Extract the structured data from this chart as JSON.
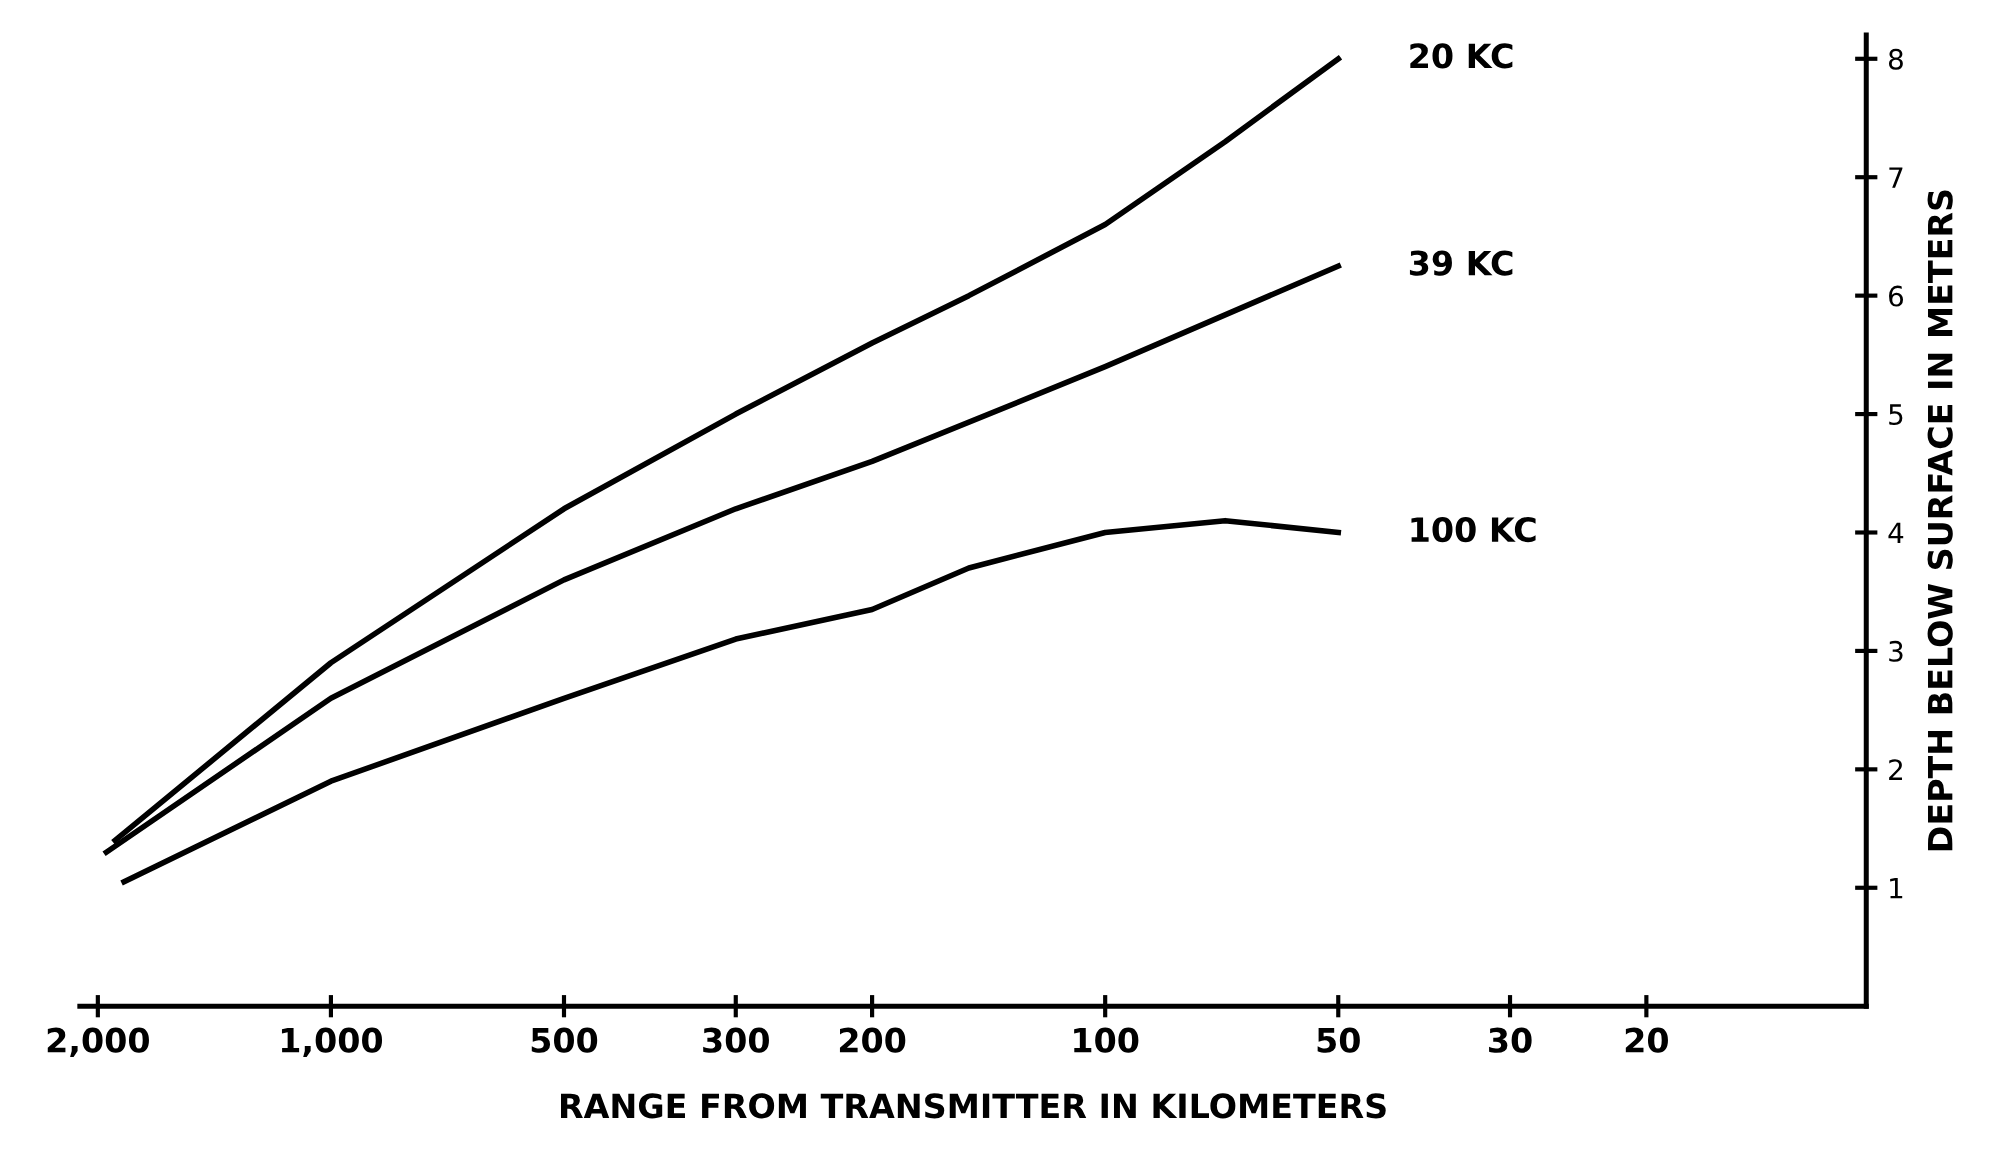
{
  "chart_data": {
    "type": "line",
    "xlabel": "RANGE FROM TRANSMITTER IN KILOMETERS",
    "ylabel": "DEPTH BELOW SURFACE IN METERS",
    "log": "x",
    "xlim": [
      2110,
      10.4
    ],
    "ylim": [
      0,
      8.2
    ],
    "xticks": [
      {
        "value": 2000,
        "label": "2,000"
      },
      {
        "value": 1000,
        "label": "1,000"
      },
      500,
      300,
      200,
      100,
      50,
      30,
      20
    ],
    "yticks": [
      1,
      2,
      3,
      4,
      5,
      6,
      7,
      8
    ],
    "grid": false,
    "legend": false,
    "marker": "none",
    "line_style": "solid",
    "series": [
      {
        "name": "20 KC",
        "color": "#000000",
        "x": [
          1900,
          1000,
          500,
          300,
          200,
          150,
          100,
          70,
          50
        ],
        "values": [
          1.4,
          2.9,
          4.2,
          5.0,
          5.6,
          6.0,
          6.6,
          7.3,
          8.0
        ]
      },
      {
        "name": "39 KC",
        "color": "#000000",
        "x": [
          1950,
          1000,
          500,
          300,
          200,
          100,
          50
        ],
        "values": [
          1.3,
          2.6,
          3.6,
          4.2,
          4.6,
          5.4,
          6.25
        ]
      },
      {
        "name": "100 KC",
        "color": "#000000",
        "x": [
          1850,
          1000,
          500,
          300,
          200,
          150,
          100,
          70,
          50
        ],
        "values": [
          1.05,
          1.9,
          2.6,
          3.1,
          3.35,
          3.7,
          4.0,
          4.1,
          4.0
        ]
      }
    ]
  }
}
